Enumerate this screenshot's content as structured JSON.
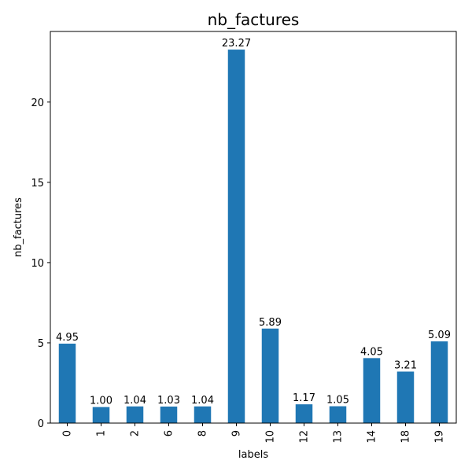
{
  "chart_data": {
    "type": "bar",
    "title": "nb_factures",
    "xlabel": "labels",
    "ylabel": "nb_factures",
    "categories": [
      "0",
      "1",
      "2",
      "6",
      "8",
      "9",
      "10",
      "12",
      "13",
      "14",
      "18",
      "19"
    ],
    "values": [
      4.95,
      1.0,
      1.04,
      1.03,
      1.04,
      23.27,
      5.89,
      1.17,
      1.05,
      4.05,
      3.21,
      5.09
    ],
    "value_labels": [
      "4.95",
      "1.00",
      "1.04",
      "1.03",
      "1.04",
      "23.27",
      "5.89",
      "1.17",
      "1.05",
      "4.05",
      "3.21",
      "5.09"
    ],
    "ylim": [
      0,
      24.4
    ],
    "yticks": [
      0,
      5,
      10,
      15,
      20
    ],
    "ytick_labels": [
      "0",
      "5",
      "10",
      "15",
      "20"
    ],
    "grid": false,
    "bar_color": "#1f77b4"
  }
}
